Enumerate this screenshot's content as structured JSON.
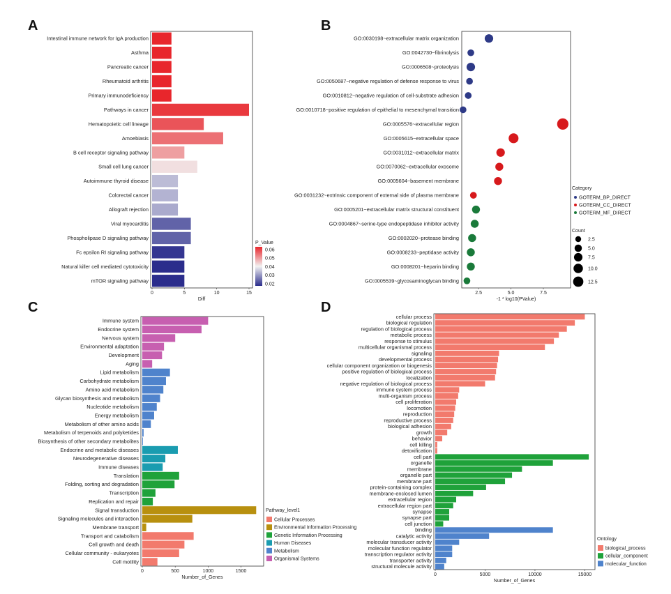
{
  "chart_data": [
    {
      "panel": "A",
      "type": "bar",
      "orientation": "horizontal",
      "categories": [
        "Intestinal immune network for IgA production",
        "Asthma",
        "Pancreatic cancer",
        "Rheumatoid arthritis",
        "Primary immunodeficiency",
        "Pathways in cancer",
        "Hematopoietic cell lineage",
        "Amoebiasis",
        "B cell receptor signaling pathway",
        "Small cell lung cancer",
        "Autoimmune thyroid disease",
        "Colorectal cancer",
        "Allograft rejection",
        "Viral myocarditis",
        "Phospholipase D signaling pathway",
        "Fc epsilon RI signaling pathway",
        "Natural killer cell mediated cytotoxicity",
        "mTOR signaling pathway"
      ],
      "values": [
        3,
        3,
        3,
        3,
        3,
        15,
        8,
        11,
        5,
        7,
        4,
        4,
        4,
        6,
        6,
        5,
        5,
        5
      ],
      "p_values": [
        0.06,
        0.06,
        0.06,
        0.06,
        0.06,
        0.058,
        0.055,
        0.052,
        0.047,
        0.04,
        0.032,
        0.031,
        0.03,
        0.022,
        0.022,
        0.017,
        0.016,
        0.016
      ],
      "xlabel": "Diff",
      "xlim": [
        0,
        15
      ],
      "xticks": [
        "0",
        "5",
        "10",
        "15"
      ],
      "legend": {
        "title": "P_Value",
        "ticks": [
          "0.06",
          "0.05",
          "0.04",
          "0.03",
          "0.02"
        ],
        "colors": [
          "#e8262c",
          "#f2f2f2",
          "#2b2d8c"
        ]
      }
    },
    {
      "panel": "B",
      "type": "scatter",
      "categories": [
        "GO:0030198~extracellular matrix organization",
        "GO:0042730~fibrinolysis",
        "GO:0006508~proteolysis",
        "GO:0050687~negative regulation of defense response to virus",
        "GO:0010812~negative regulation of cell-substrate adhesion",
        "GO:0010718~positive regulation of epithelial to mesenchymal transition",
        "GO:0005576~extracellular region",
        "GO:0005615~extracellular space",
        "GO:0031012~extracellular matrix",
        "GO:0070062~extracellular exosome",
        "GO:0005604~basement membrane",
        "GO:0031232~extrinsic component of external side of plasma membrane",
        "GO:0005201~extracellular matrix structural constituent",
        "GO:0004867~serine-type endopeptidase inhibitor activity",
        "GO:0002020~protease binding",
        "GO:0008233~peptidase activity",
        "GO:0008201~heparin binding",
        "GO:0005539~glycosaminoglycan binding"
      ],
      "x": [
        3.3,
        1.9,
        1.9,
        1.8,
        1.7,
        1.3,
        9.0,
        5.2,
        4.2,
        4.1,
        4.0,
        2.1,
        2.3,
        2.2,
        2.0,
        1.9,
        1.9,
        1.6
      ],
      "count": [
        6,
        3,
        6,
        3,
        3,
        3,
        13,
        9,
        6,
        5,
        5,
        3,
        5,
        5,
        5,
        5,
        5,
        3
      ],
      "group": [
        "BP",
        "BP",
        "BP",
        "BP",
        "BP",
        "BP",
        "CC",
        "CC",
        "CC",
        "CC",
        "CC",
        "CC",
        "MF",
        "MF",
        "MF",
        "MF",
        "MF",
        "MF"
      ],
      "xlabel": "-1 * log10(PValue)",
      "xlim": [
        1.2,
        9.6
      ],
      "xticks": [
        "2.5",
        "5.0",
        "7.5"
      ],
      "legend_category": {
        "title": "Category",
        "items": [
          {
            "name": "GOTERM_BP_DIRECT",
            "color": "#2e3a87"
          },
          {
            "name": "GOTERM_CC_DIRECT",
            "color": "#d7191c"
          },
          {
            "name": "GOTERM_MF_DIRECT",
            "color": "#1a7a3a"
          }
        ]
      },
      "legend_count": {
        "title": "Count",
        "items": [
          "2.5",
          "5.0",
          "7.5",
          "10.0",
          "12.5"
        ]
      }
    },
    {
      "panel": "C",
      "type": "bar",
      "orientation": "horizontal",
      "categories": [
        "Immune system",
        "Endocrine system",
        "Nervous system",
        "Environmental adaptation",
        "Development",
        "Aging",
        "Lipid metabolism",
        "Carbohydrate metabolism",
        "Amino acid metabolism",
        "Glycan biosynthesis and metabolism",
        "Nucleotide metabolism",
        "Energy metabolism",
        "Metabolism of other amino acids",
        "Metabolism of terpenoids and polyketides",
        "Biosynthesis of other secondary metabolites",
        "Endocrine and metabolic diseases",
        "Neurodegenerative diseases",
        "Immune diseases",
        "Translation",
        "Folding, sorting and degradation",
        "Transcription",
        "Replication and repair",
        "Signal transduction",
        "Signaling molecules and interaction",
        "Membrane transport",
        "Transport and catabolism",
        "Cell growth and death",
        "Cellular community - eukaryotes",
        "Cell motility"
      ],
      "values": [
        1000,
        900,
        500,
        330,
        300,
        150,
        420,
        360,
        320,
        270,
        220,
        180,
        130,
        20,
        10,
        540,
        350,
        310,
        560,
        490,
        200,
        160,
        1730,
        760,
        60,
        780,
        640,
        560,
        230
      ],
      "groups": [
        "Organismal Systems",
        "Organismal Systems",
        "Organismal Systems",
        "Organismal Systems",
        "Organismal Systems",
        "Organismal Systems",
        "Metabolism",
        "Metabolism",
        "Metabolism",
        "Metabolism",
        "Metabolism",
        "Metabolism",
        "Metabolism",
        "Metabolism",
        "Metabolism",
        "Human Diseases",
        "Human Diseases",
        "Human Diseases",
        "Genetic Information Processing",
        "Genetic Information Processing",
        "Genetic Information Processing",
        "Genetic Information Processing",
        "Environmental Information Processing",
        "Environmental Information Processing",
        "Environmental Information Processing",
        "Cellular Processes",
        "Cellular Processes",
        "Cellular Processes",
        "Cellular Processes"
      ],
      "xlabel": "Number_of_Genes",
      "xlim": [
        0,
        1780
      ],
      "xticks": [
        {
          "v": 0,
          "label": "0"
        },
        {
          "v": 500,
          "label": "500"
        },
        {
          "v": 1000,
          "label": "1000"
        },
        {
          "v": 1500,
          "label": "1500"
        }
      ],
      "legend": {
        "title": "Pathway_level1",
        "items": [
          {
            "name": "Cellular Processes",
            "color": "#f27a6d"
          },
          {
            "name": "Environmental Information Processing",
            "color": "#b8900f"
          },
          {
            "name": "Genetic Information Processing",
            "color": "#1fa23a"
          },
          {
            "name": "Human Diseases",
            "color": "#1a9cb0"
          },
          {
            "name": "Metabolism",
            "color": "#4f83cc"
          },
          {
            "name": "Organismal Systems",
            "color": "#c75fb0"
          }
        ]
      }
    },
    {
      "panel": "D",
      "type": "bar",
      "orientation": "horizontal",
      "categories": [
        "cellular process",
        "biological regulation",
        "regulation of biological process",
        "metabolic process",
        "response to stimulus",
        "multicellular organismal process",
        "signaling",
        "developmental process",
        "cellular component organization or biogenesis",
        "positive regulation of biological process",
        "localization",
        "negative regulation of biological process",
        "immune system process",
        "multi-organism process",
        "cell proliferation",
        "locomotion",
        "reproduction",
        "reproductive process",
        "biological adhesion",
        "growth",
        "behavior",
        "cell killing",
        "detoxification",
        "cell part",
        "organelle",
        "membrane",
        "organelle part",
        "membrane part",
        "protein-containing complex",
        "membrane-enclosed lumen",
        "extracellular region",
        "extracellular region part",
        "synapse",
        "synapse part",
        "cell junction",
        "binding",
        "catalytic activity",
        "molecular transducer activity",
        "molecular function regulator",
        "transcription regulator activity",
        "transporter activity",
        "structural molecule activity"
      ],
      "values": [
        15000,
        14000,
        13200,
        12400,
        11900,
        11000,
        6400,
        6300,
        6200,
        6100,
        6000,
        5000,
        2400,
        2300,
        2100,
        2000,
        1900,
        1800,
        1600,
        1200,
        700,
        200,
        200,
        15400,
        11800,
        8700,
        7700,
        7000,
        5100,
        3800,
        2100,
        1800,
        1400,
        1400,
        800,
        11800,
        5400,
        2400,
        1700,
        1700,
        1100,
        900
      ],
      "groups": [
        "biological_process",
        "biological_process",
        "biological_process",
        "biological_process",
        "biological_process",
        "biological_process",
        "biological_process",
        "biological_process",
        "biological_process",
        "biological_process",
        "biological_process",
        "biological_process",
        "biological_process",
        "biological_process",
        "biological_process",
        "biological_process",
        "biological_process",
        "biological_process",
        "biological_process",
        "biological_process",
        "biological_process",
        "biological_process",
        "biological_process",
        "cellular_component",
        "cellular_component",
        "cellular_component",
        "cellular_component",
        "cellular_component",
        "cellular_component",
        "cellular_component",
        "cellular_component",
        "cellular_component",
        "cellular_component",
        "cellular_component",
        "cellular_component",
        "molecular_function",
        "molecular_function",
        "molecular_function",
        "molecular_function",
        "molecular_function",
        "molecular_function",
        "molecular_function"
      ],
      "xlabel": "Number_of_Genes",
      "xlim": [
        0,
        15600
      ],
      "xticks": [
        {
          "v": 0,
          "label": "0"
        },
        {
          "v": 5000,
          "label": "5000"
        },
        {
          "v": 10000,
          "label": "10000"
        },
        {
          "v": 15000,
          "label": "15000"
        }
      ],
      "legend": {
        "title": "Ontology",
        "items": [
          {
            "name": "biological_process",
            "color": "#f27a6d"
          },
          {
            "name": "cellular_component",
            "color": "#1fa23a"
          },
          {
            "name": "molecular_function",
            "color": "#4f83cc"
          }
        ]
      }
    }
  ]
}
